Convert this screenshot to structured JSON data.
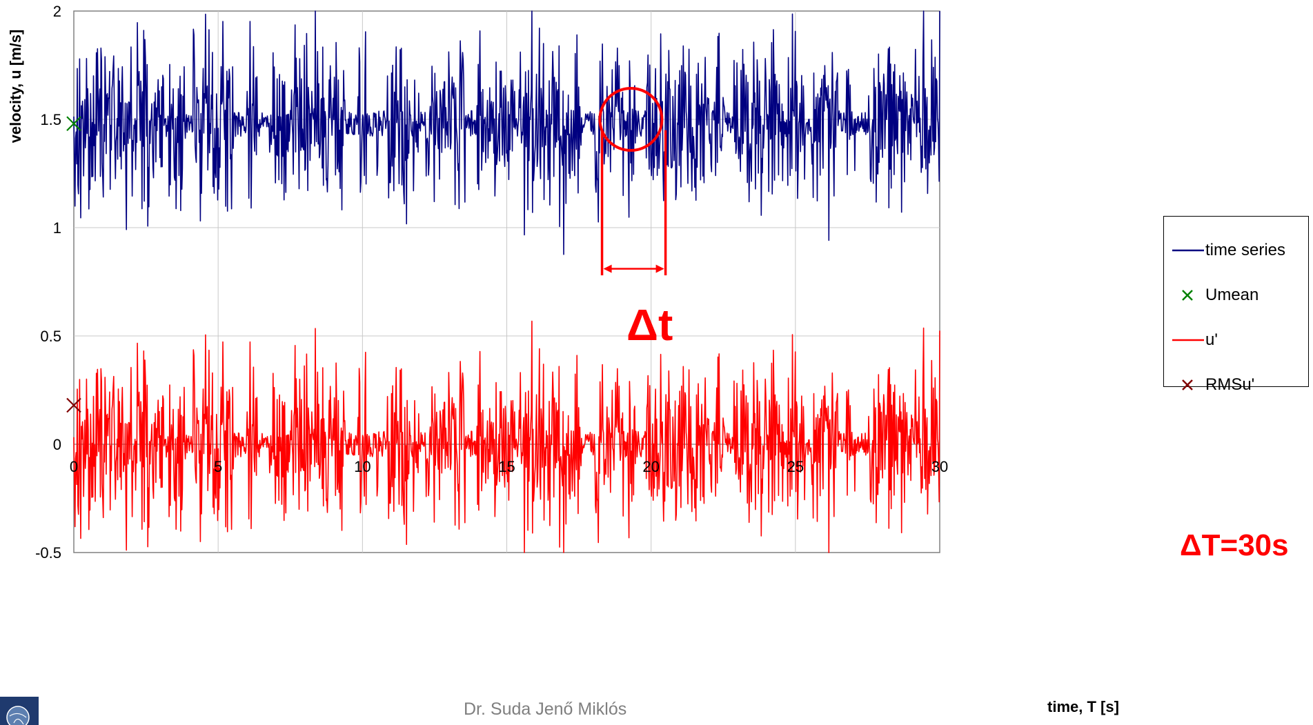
{
  "chart_data": {
    "type": "line",
    "ylabel": "velocity, u [m/s]",
    "xlabel": "time, T [s]",
    "xlim": [
      0,
      30
    ],
    "ylim": [
      -0.5,
      2
    ],
    "x_ticks": [
      "0",
      "5",
      "10",
      "15",
      "20",
      "25",
      "30"
    ],
    "y_ticks": [
      "-0.5",
      "0",
      "0.5",
      "1",
      "1.5",
      "2"
    ],
    "grid": true,
    "legend_position": "right",
    "series": [
      {
        "name": "time series",
        "kind": "line",
        "color": "#000080",
        "mean": 1.48,
        "amplitude": 0.55,
        "seed": 17
      },
      {
        "name": "Umean",
        "kind": "marker",
        "marker": "x",
        "color": "#008000",
        "points": [
          [
            0,
            1.48
          ]
        ]
      },
      {
        "name": "u'",
        "kind": "line",
        "color": "#ff0000",
        "mean": 0.0,
        "amplitude": 0.55,
        "seed": 17
      },
      {
        "name": "RMSu'",
        "kind": "marker",
        "marker": "x",
        "color": "#800000",
        "points": [
          [
            0,
            0.18
          ]
        ]
      }
    ],
    "annotations": [
      {
        "text": "Δt",
        "color": "#ff0000",
        "interval": [
          18.3,
          20.5
        ],
        "circle_center": [
          19.3,
          1.5
        ]
      },
      {
        "text": "ΔT=30s",
        "color": "#ff0000"
      }
    ]
  },
  "footer": {
    "author": "Dr. Suda Jenő Miklós"
  },
  "logo": {
    "icon": "globe-logo"
  }
}
